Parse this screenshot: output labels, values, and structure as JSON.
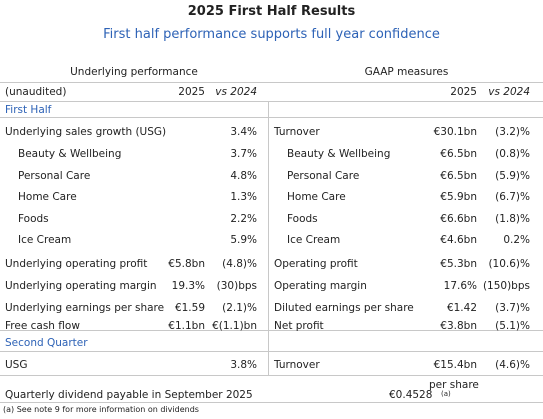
{
  "header": {
    "title": "2025 First Half Results",
    "subtitle": "First half performance supports full year confidence"
  },
  "table": {
    "groups": [
      "Underlying performance",
      "GAAP measures"
    ],
    "columns": [
      "(unaudited)",
      "2025",
      "vs 2024",
      "2025",
      "vs 2024"
    ],
    "sections": [
      {
        "title": "First Half",
        "rows": [
          {
            "left": {
              "label": "Underlying sales growth (USG)",
              "change": "3.4%"
            },
            "right": {
              "label": "Turnover",
              "value": "€30.1bn",
              "change": "(3.2)%"
            }
          },
          {
            "left": {
              "label": "Beauty & Wellbeing",
              "change": "3.7%"
            },
            "right": {
              "label": "Beauty & Wellbeing",
              "value": "€6.5bn",
              "change": "(0.8)%"
            }
          },
          {
            "left": {
              "label": "Personal Care",
              "change": "4.8%"
            },
            "right": {
              "label": "Personal Care",
              "value": "€6.5bn",
              "change": "(5.9)%"
            }
          },
          {
            "left": {
              "label": "Home Care",
              "change": "1.3%"
            },
            "right": {
              "label": "Home Care",
              "value": "€5.9bn",
              "change": "(6.7)%"
            }
          },
          {
            "left": {
              "label": "Foods",
              "change": "2.2%"
            },
            "right": {
              "label": "Foods",
              "value": "€6.6bn",
              "change": "(1.8)%"
            }
          },
          {
            "left": {
              "label": "Ice Cream",
              "change": "5.9%"
            },
            "right": {
              "label": "Ice Cream",
              "value": "€4.6bn",
              "change": "0.2%"
            }
          },
          {
            "left": {
              "label": "Underlying operating profit",
              "value": "€5.8bn",
              "change": "(4.8)%"
            },
            "right": {
              "label": "Operating profit",
              "value": "€5.3bn",
              "change": "(10.6)%"
            }
          },
          {
            "left": {
              "label": "Underlying operating margin",
              "value": "19.3%",
              "change": "(30)bps"
            },
            "right": {
              "label": "Operating margin",
              "value": "17.6%",
              "change": "(150)bps"
            }
          },
          {
            "left": {
              "label": "Underlying earnings per share",
              "value": "€1.59",
              "change": "(2.1)%"
            },
            "right": {
              "label": "Diluted earnings per share",
              "value": "€1.42",
              "change": "(3.7)%"
            }
          },
          {
            "left": {
              "label": "Free cash flow",
              "value": "€1.1bn",
              "change": "€(1.1)bn"
            },
            "right": {
              "label": "Net profit",
              "value": "€3.8bn",
              "change": "(5.1)%"
            }
          }
        ]
      },
      {
        "title": "Second Quarter",
        "rows": [
          {
            "left": {
              "label": "USG",
              "change": "3.8%"
            },
            "right": {
              "label": "Turnover",
              "value": "€15.4bn",
              "change": "(4.6)%"
            }
          }
        ]
      }
    ]
  },
  "dividend": {
    "label": "Quarterly dividend payable in September 2025",
    "value": "€0.4528",
    "unit": "per share",
    "note": "(a)"
  },
  "footnote": "(a)  See note 9 for more information on dividends"
}
